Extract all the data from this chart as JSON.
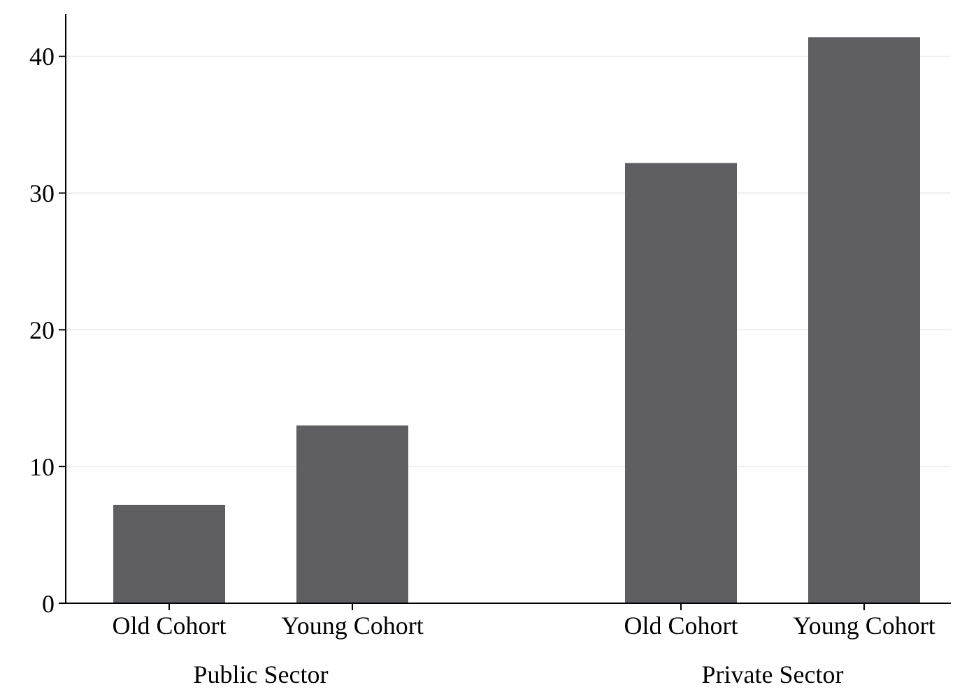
{
  "chart_data": {
    "type": "bar",
    "categories": [
      "Old Cohort",
      "Young Cohort",
      "Old Cohort",
      "Young Cohort"
    ],
    "values": [
      7.2,
      13.0,
      32.2,
      41.4
    ],
    "color": "#5f5f63",
    "ylim": [
      0,
      43.1
    ],
    "yticks": [
      0,
      10,
      20,
      30,
      40
    ],
    "grid": "y",
    "annotations": [
      "Public Sector",
      "Private Sector"
    ]
  }
}
